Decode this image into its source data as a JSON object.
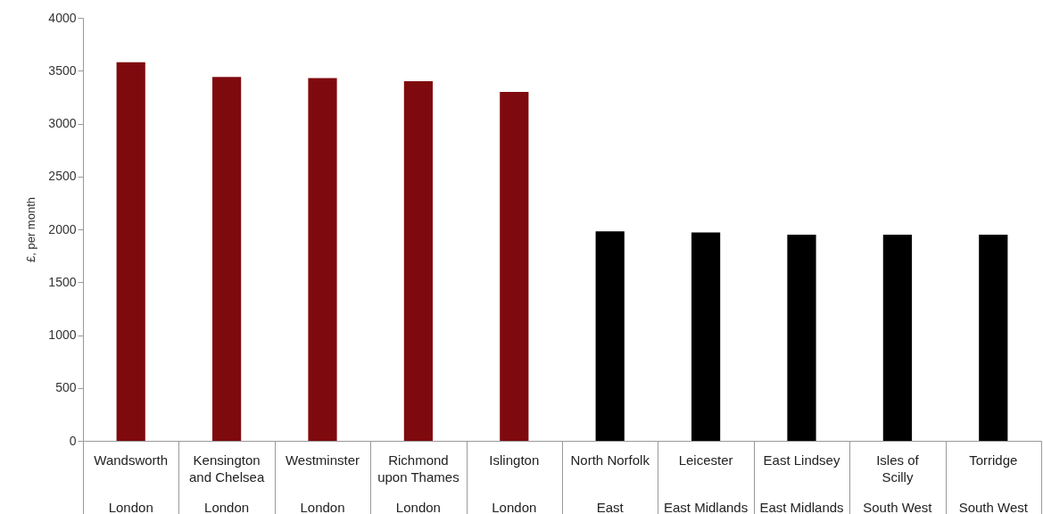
{
  "chart_data": {
    "type": "bar",
    "ylabel": "£, per month",
    "categories": [
      "Wandsworth",
      "Kensington and Chelsea",
      "Westminster",
      "Richmond upon Thames",
      "Islington",
      "North Norfolk",
      "Leicester",
      "East Lindsey",
      "Isles of Scilly",
      "Torridge"
    ],
    "values": [
      3580,
      3440,
      3430,
      3400,
      3300,
      1980,
      1970,
      1950,
      1950,
      1950
    ],
    "colors": [
      "#7f0a0e",
      "#7f0a0e",
      "#7f0a0e",
      "#7f0a0e",
      "#7f0a0e",
      "#000000",
      "#000000",
      "#000000",
      "#000000",
      "#000000"
    ],
    "annotations": [
      "London",
      "London",
      "London",
      "London",
      "London",
      "East",
      "East Midlands",
      "East Midlands",
      "South West",
      "South West"
    ],
    "ylim": [
      0,
      4000
    ],
    "yticks": [
      0,
      500,
      1000,
      1500,
      2000,
      2500,
      3000,
      3500,
      4000
    ],
    "grid": false
  }
}
